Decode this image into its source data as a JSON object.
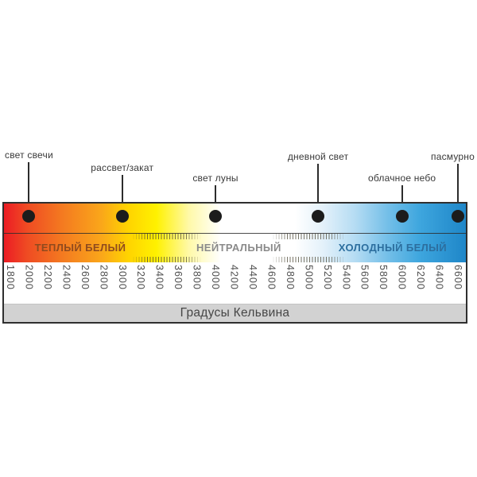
{
  "chart_data": {
    "type": "heatmap",
    "subtype": "color-temperature-scale",
    "title": "",
    "xlabel": "Градусы Кельвина",
    "axis_kelvin": {
      "min": 1800,
      "max": 6600,
      "step": 200
    },
    "tick_labels": [
      "1800",
      "2000",
      "2200",
      "2400",
      "2600",
      "2800",
      "3000",
      "3200",
      "3400",
      "3600",
      "3800",
      "4000",
      "4200",
      "4400",
      "4600",
      "4800",
      "5000",
      "5200",
      "5400",
      "5600",
      "5800",
      "6000",
      "6200",
      "6400",
      "6600"
    ],
    "zones": [
      {
        "label": "ТЕПЛЫЙ БЕЛЫЙ",
        "kelvin_range": [
          1800,
          3300
        ],
        "label_color": "#8f4a1e"
      },
      {
        "label": "НЕЙТРАЛЬНЫЙ",
        "kelvin_range": [
          3300,
          5200
        ],
        "label_color": "#8a8a8a"
      },
      {
        "label": "ХОЛОДНЫЙ БЕЛЫЙ",
        "kelvin_range": [
          5200,
          6600
        ],
        "label_color": "#2c6e9e"
      }
    ],
    "transition_bands_kelvin": [
      [
        3100,
        3850
      ],
      [
        4600,
        5400
      ]
    ],
    "markers": [
      {
        "label": "свет свечи",
        "kelvin": 2000
      },
      {
        "label": "рассвет/закат",
        "kelvin": 3000
      },
      {
        "label": "свет луны",
        "kelvin": 4000
      },
      {
        "label": "дневной свет",
        "kelvin": 5100
      },
      {
        "label": "облачное небо",
        "kelvin": 6000
      },
      {
        "label": "пасмурно",
        "kelvin": 6600
      }
    ],
    "marker_dot_color": "#1c1c1c",
    "gradient_stops": [
      {
        "pos": 0,
        "color": "#ec1c24"
      },
      {
        "pos": 5,
        "color": "#ef4b23"
      },
      {
        "pos": 13,
        "color": "#f47c20"
      },
      {
        "pos": 21,
        "color": "#faa61a"
      },
      {
        "pos": 27,
        "color": "#ffd400"
      },
      {
        "pos": 33,
        "color": "#fff100"
      },
      {
        "pos": 40,
        "color": "#fff9a8"
      },
      {
        "pos": 47,
        "color": "#ffffff"
      },
      {
        "pos": 63,
        "color": "#ffffff"
      },
      {
        "pos": 69,
        "color": "#e4f1fa"
      },
      {
        "pos": 76,
        "color": "#b5dcf3"
      },
      {
        "pos": 83,
        "color": "#74bfe8"
      },
      {
        "pos": 90,
        "color": "#3ea6de"
      },
      {
        "pos": 100,
        "color": "#1e86c8"
      }
    ]
  }
}
